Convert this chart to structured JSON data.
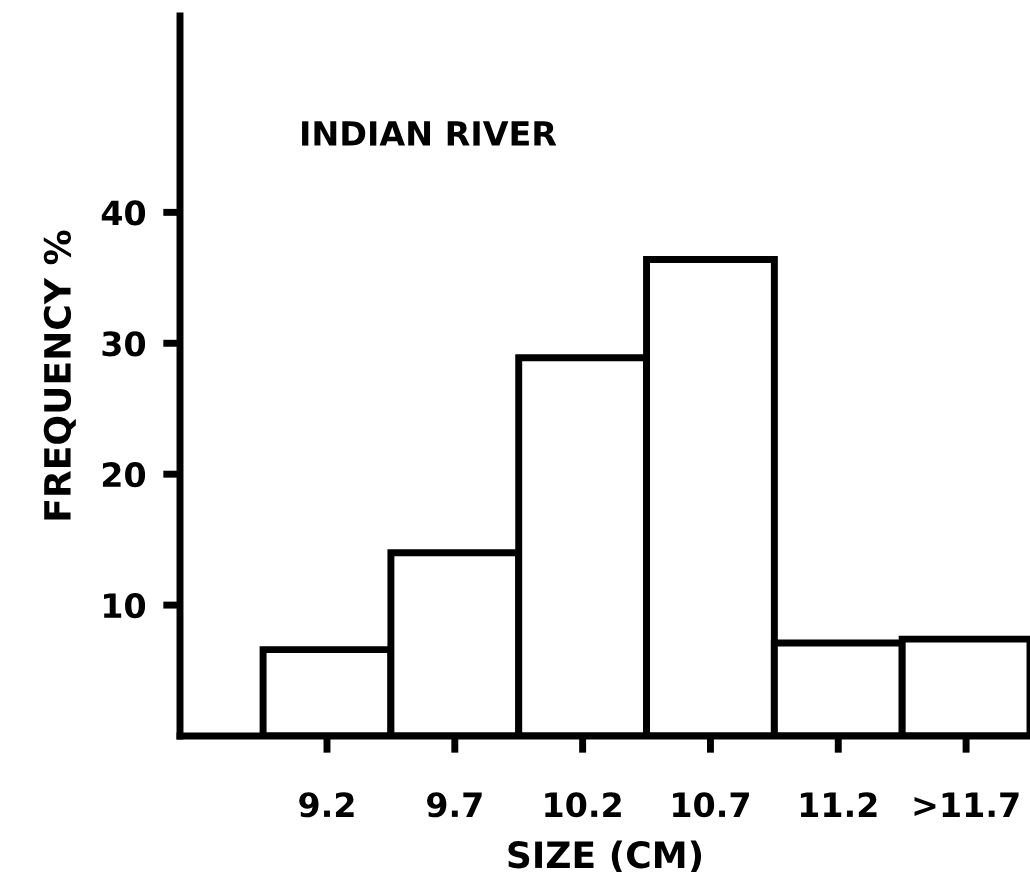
{
  "chart_data": {
    "type": "bar",
    "title": "INDIAN RIVER",
    "xlabel": "SIZE (CM)",
    "ylabel": "FREQUENCY %",
    "categories": [
      "9.2",
      "9.7",
      "10.2",
      "10.7",
      "11.2",
      ">11.7"
    ],
    "values": [
      6.6,
      14.0,
      28.9,
      36.4,
      7.1,
      7.4
    ],
    "color": "#ffffff",
    "ylim": [
      0,
      55
    ],
    "yticks": [
      10,
      20,
      30,
      40
    ],
    "grid": false,
    "legend": false
  }
}
